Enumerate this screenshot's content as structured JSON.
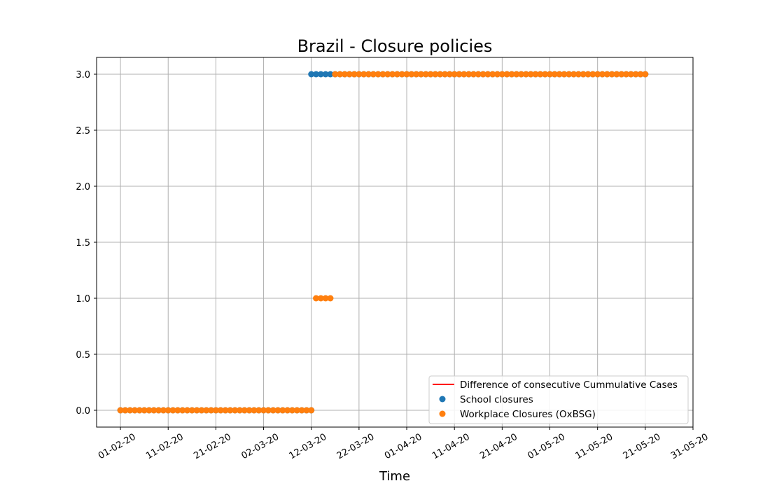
{
  "chart_data": {
    "type": "scatter",
    "title": "Brazil - Closure policies",
    "xlabel": "Time",
    "ylabel": "",
    "xlim": [
      "2020-01-27",
      "2020-05-31"
    ],
    "ylim": [
      -0.15,
      3.15
    ],
    "grid": true,
    "legend_position": "lower-right",
    "x_ticks": [
      "2020-02-01",
      "2020-02-11",
      "2020-02-21",
      "2020-03-02",
      "2020-03-12",
      "2020-03-22",
      "2020-04-01",
      "2020-04-11",
      "2020-04-21",
      "2020-05-01",
      "2020-05-11",
      "2020-05-21",
      "2020-05-31"
    ],
    "x_tick_labels": [
      "01-02-20",
      "11-02-20",
      "21-02-20",
      "02-03-20",
      "12-03-20",
      "22-03-20",
      "01-04-20",
      "11-04-20",
      "21-04-20",
      "01-05-20",
      "11-05-20",
      "21-05-20",
      "31-05-20"
    ],
    "y_ticks": [
      0.0,
      0.5,
      1.0,
      1.5,
      2.0,
      2.5,
      3.0
    ],
    "y_tick_labels": [
      "0.0",
      "0.5",
      "1.0",
      "1.5",
      "2.0",
      "2.5",
      "3.0"
    ],
    "series": [
      {
        "name": "Difference of consecutive Cummulative Cases",
        "kind": "line",
        "color": "#ff0000",
        "segments": []
      },
      {
        "name": "School closures",
        "kind": "scatter",
        "color": "#1f77b4",
        "segments": [
          {
            "start": "2020-02-01",
            "end": "2020-03-12",
            "value": 0
          },
          {
            "start": "2020-03-12",
            "end": "2020-05-21",
            "value": 3
          }
        ]
      },
      {
        "name": "Workplace Closures (OxBSG)",
        "kind": "scatter",
        "color": "#ff7f0e",
        "segments": [
          {
            "start": "2020-02-01",
            "end": "2020-03-12",
            "value": 0
          },
          {
            "start": "2020-03-13",
            "end": "2020-03-16",
            "value": 1
          },
          {
            "start": "2020-03-17",
            "end": "2020-05-21",
            "value": 3
          }
        ]
      }
    ]
  }
}
